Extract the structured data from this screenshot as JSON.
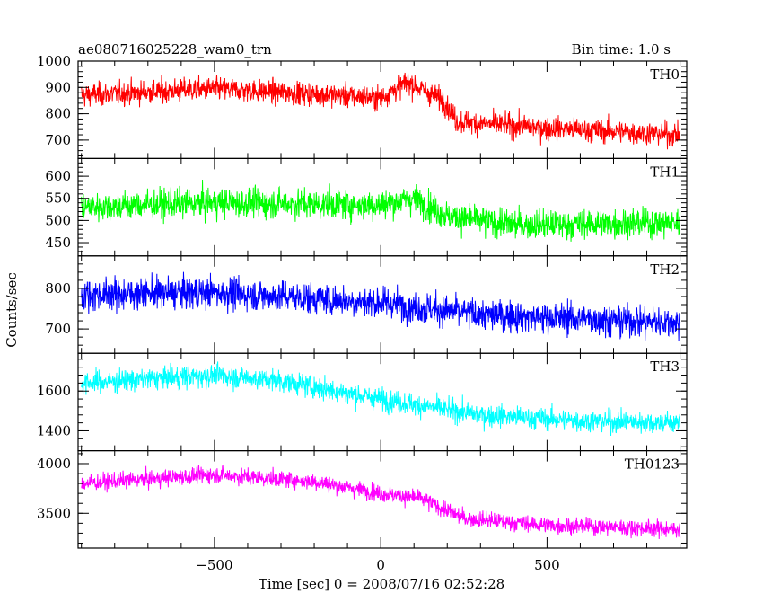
{
  "chart_data": {
    "type": "line",
    "title": "ae080716025228_wam0_trn",
    "subtitle": "Bin time: 1.0 s",
    "xlabel": "Time [sec] 0 = 2008/07/16 02:52:28",
    "ylabel": "Counts/sec",
    "xlim": [
      -910,
      920
    ],
    "x_ticks": [
      -500,
      0,
      500
    ],
    "x_tick_labels": [
      "−500",
      "0",
      "500"
    ],
    "bin_time_s": 1.0,
    "panels": [
      {
        "name": "TH0",
        "color": "#ff0000",
        "ylim": [
          630,
          1000
        ],
        "y_ticks": [
          700,
          800,
          900,
          1000
        ],
        "trend": {
          "x": [
            -900,
            -500,
            -200,
            0,
            80,
            190,
            230,
            500,
            900
          ],
          "y": [
            870,
            895,
            875,
            860,
            920,
            850,
            770,
            745,
            720
          ]
        },
        "noise": 40
      },
      {
        "name": "TH1",
        "color": "#00ff00",
        "ylim": [
          420,
          640
        ],
        "y_ticks": [
          450,
          500,
          550,
          600
        ],
        "trend": {
          "x": [
            -900,
            -500,
            0,
            100,
            200,
            400,
            900
          ],
          "y": [
            530,
            540,
            535,
            550,
            510,
            490,
            495
          ]
        },
        "noise": 30
      },
      {
        "name": "TH2",
        "color": "#0000ff",
        "ylim": [
          640,
          880
        ],
        "y_ticks": [
          700,
          800
        ],
        "trend": {
          "x": [
            -900,
            -500,
            0,
            300,
            900
          ],
          "y": [
            785,
            790,
            765,
            735,
            715
          ]
        },
        "noise": 35
      },
      {
        "name": "TH3",
        "color": "#00ffff",
        "ylim": [
          1300,
          1790
        ],
        "y_ticks": [
          1400,
          1600
        ],
        "trend": {
          "x": [
            -900,
            -500,
            -300,
            0,
            300,
            600,
            900
          ],
          "y": [
            1640,
            1680,
            1650,
            1560,
            1480,
            1450,
            1440
          ]
        },
        "noise": 50
      },
      {
        "name": "TH0123",
        "color": "#ff00ff",
        "ylim": [
          3150,
          4130
        ],
        "y_ticks": [
          3500,
          4000
        ],
        "trend": {
          "x": [
            -900,
            -500,
            -200,
            0,
            120,
            250,
            500,
            900
          ],
          "y": [
            3800,
            3890,
            3820,
            3700,
            3650,
            3450,
            3380,
            3340
          ]
        },
        "noise": 75
      }
    ]
  }
}
